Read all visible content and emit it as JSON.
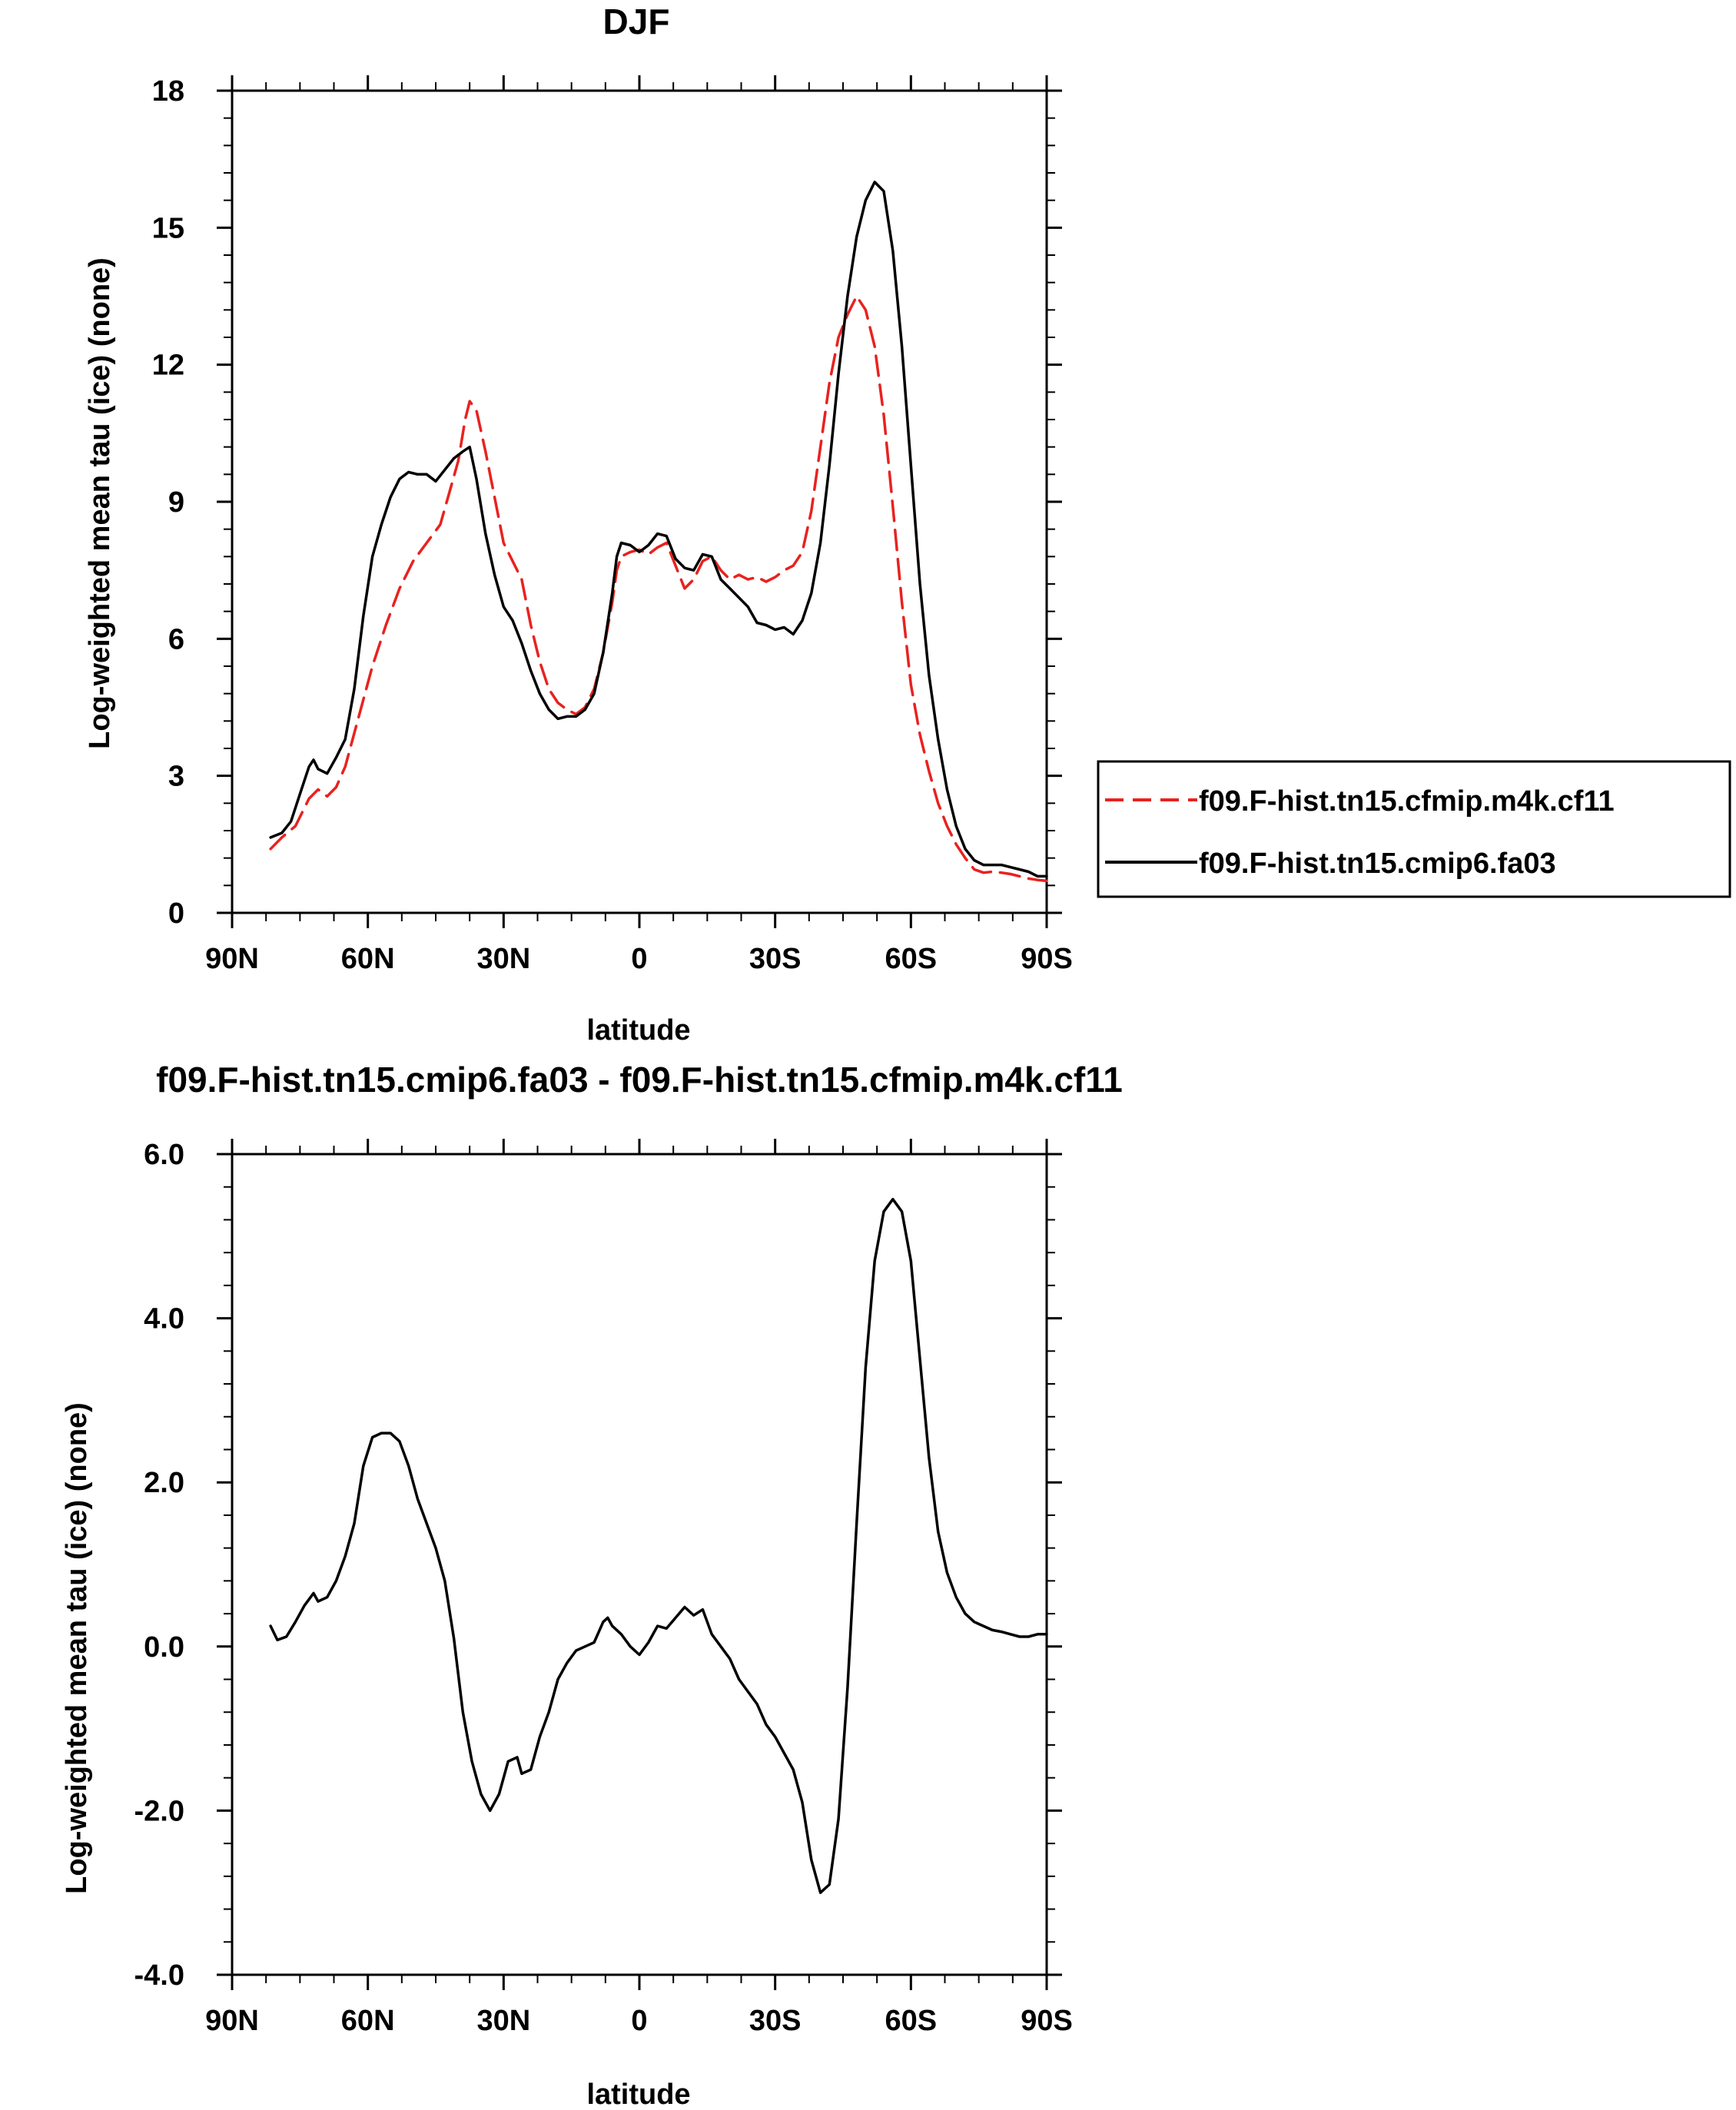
{
  "chart_data": [
    {
      "type": "line",
      "title": "DJF",
      "xlabel": "latitude",
      "ylabel": "Log-weighted mean tau (ice) (none)",
      "xlim": [
        90,
        -90
      ],
      "ylim": [
        0,
        18
      ],
      "xticks": [
        90,
        60,
        30,
        0,
        -30,
        -60,
        -90
      ],
      "xtick_labels": [
        "90N",
        "60N",
        "30N",
        "0",
        "30S",
        "60S",
        "90S"
      ],
      "yticks": [
        0,
        3,
        6,
        9,
        12,
        15,
        18
      ],
      "ytick_labels": [
        "0",
        "3",
        "6",
        "9",
        "12",
        "15",
        "18"
      ],
      "grid": false,
      "legend_position": "right",
      "series": [
        {
          "name": "f09.F-hist.tn15.cfmip.m4k.cf11",
          "color": "#e8221f",
          "dash": "dashed",
          "points": [
            [
              81.5,
              1.4
            ],
            [
              79,
              1.65
            ],
            [
              76,
              1.9
            ],
            [
              73,
              2.5
            ],
            [
              71,
              2.7
            ],
            [
              69,
              2.55
            ],
            [
              67,
              2.75
            ],
            [
              65,
              3.2
            ],
            [
              62,
              4.3
            ],
            [
              59,
              5.4
            ],
            [
              56,
              6.3
            ],
            [
              53,
              7.1
            ],
            [
              50,
              7.7
            ],
            [
              47,
              8.1
            ],
            [
              44,
              8.5
            ],
            [
              42,
              9.2
            ],
            [
              40,
              9.9
            ],
            [
              38.5,
              10.8
            ],
            [
              37.5,
              11.2
            ],
            [
              36,
              11.0
            ],
            [
              34,
              10.1
            ],
            [
              32,
              9.1
            ],
            [
              30,
              8.1
            ],
            [
              28,
              7.7
            ],
            [
              26,
              7.3
            ],
            [
              24,
              6.3
            ],
            [
              22,
              5.5
            ],
            [
              20,
              4.9
            ],
            [
              18,
              4.6
            ],
            [
              16,
              4.45
            ],
            [
              14,
              4.35
            ],
            [
              12,
              4.5
            ],
            [
              10,
              4.9
            ],
            [
              8,
              5.7
            ],
            [
              6,
              6.8
            ],
            [
              5,
              7.5
            ],
            [
              4,
              7.8
            ],
            [
              2,
              7.9
            ],
            [
              0,
              7.95
            ],
            [
              -2,
              7.85
            ],
            [
              -4,
              8.0
            ],
            [
              -6,
              8.1
            ],
            [
              -8,
              7.6
            ],
            [
              -10,
              7.1
            ],
            [
              -12,
              7.3
            ],
            [
              -14,
              7.7
            ],
            [
              -16,
              7.8
            ],
            [
              -18,
              7.5
            ],
            [
              -20,
              7.3
            ],
            [
              -22,
              7.4
            ],
            [
              -24,
              7.3
            ],
            [
              -26,
              7.35
            ],
            [
              -28,
              7.25
            ],
            [
              -30,
              7.35
            ],
            [
              -32,
              7.5
            ],
            [
              -34,
              7.6
            ],
            [
              -36,
              7.9
            ],
            [
              -38,
              8.8
            ],
            [
              -40,
              10.2
            ],
            [
              -42,
              11.6
            ],
            [
              -44,
              12.6
            ],
            [
              -46,
              13.1
            ],
            [
              -48,
              13.5
            ],
            [
              -50,
              13.2
            ],
            [
              -52,
              12.4
            ],
            [
              -54,
              10.9
            ],
            [
              -56,
              8.9
            ],
            [
              -58,
              6.8
            ],
            [
              -60,
              5.0
            ],
            [
              -62,
              3.9
            ],
            [
              -64,
              3.1
            ],
            [
              -66,
              2.4
            ],
            [
              -68,
              1.9
            ],
            [
              -70,
              1.5
            ],
            [
              -72,
              1.2
            ],
            [
              -74,
              0.95
            ],
            [
              -76,
              0.88
            ],
            [
              -78,
              0.9
            ],
            [
              -80,
              0.88
            ],
            [
              -82,
              0.85
            ],
            [
              -84,
              0.8
            ],
            [
              -86,
              0.75
            ],
            [
              -88,
              0.72
            ],
            [
              -90,
              0.7
            ]
          ]
        },
        {
          "name": "f09.F-hist.tn15.cmip6.fa03",
          "color": "#000000",
          "dash": "solid",
          "points": [
            [
              81.5,
              1.65
            ],
            [
              79,
              1.75
            ],
            [
              77,
              2.0
            ],
            [
              75,
              2.6
            ],
            [
              73,
              3.2
            ],
            [
              72,
              3.35
            ],
            [
              71,
              3.15
            ],
            [
              69,
              3.05
            ],
            [
              67,
              3.4
            ],
            [
              65,
              3.8
            ],
            [
              63,
              4.9
            ],
            [
              61,
              6.5
            ],
            [
              59,
              7.8
            ],
            [
              57,
              8.5
            ],
            [
              55,
              9.1
            ],
            [
              53,
              9.5
            ],
            [
              51,
              9.65
            ],
            [
              49,
              9.6
            ],
            [
              47,
              9.6
            ],
            [
              45,
              9.45
            ],
            [
              43,
              9.7
            ],
            [
              41,
              9.95
            ],
            [
              39,
              10.1
            ],
            [
              37.5,
              10.2
            ],
            [
              36,
              9.5
            ],
            [
              34,
              8.3
            ],
            [
              32,
              7.4
            ],
            [
              30,
              6.7
            ],
            [
              28,
              6.4
            ],
            [
              26,
              5.9
            ],
            [
              24,
              5.3
            ],
            [
              22,
              4.8
            ],
            [
              20,
              4.45
            ],
            [
              18,
              4.25
            ],
            [
              16,
              4.3
            ],
            [
              14,
              4.3
            ],
            [
              12,
              4.45
            ],
            [
              10,
              4.8
            ],
            [
              8,
              5.7
            ],
            [
              6,
              7.0
            ],
            [
              5,
              7.8
            ],
            [
              4,
              8.1
            ],
            [
              2,
              8.05
            ],
            [
              0,
              7.9
            ],
            [
              -2,
              8.05
            ],
            [
              -4,
              8.3
            ],
            [
              -6,
              8.25
            ],
            [
              -8,
              7.75
            ],
            [
              -10,
              7.55
            ],
            [
              -12,
              7.5
            ],
            [
              -14,
              7.85
            ],
            [
              -16,
              7.8
            ],
            [
              -18,
              7.3
            ],
            [
              -20,
              7.1
            ],
            [
              -22,
              6.9
            ],
            [
              -24,
              6.7
            ],
            [
              -26,
              6.35
            ],
            [
              -28,
              6.3
            ],
            [
              -30,
              6.2
            ],
            [
              -32,
              6.25
            ],
            [
              -34,
              6.1
            ],
            [
              -36,
              6.4
            ],
            [
              -38,
              7.0
            ],
            [
              -40,
              8.1
            ],
            [
              -42,
              9.8
            ],
            [
              -44,
              11.8
            ],
            [
              -46,
              13.5
            ],
            [
              -48,
              14.8
            ],
            [
              -50,
              15.6
            ],
            [
              -52,
              16.0
            ],
            [
              -54,
              15.8
            ],
            [
              -56,
              14.5
            ],
            [
              -58,
              12.4
            ],
            [
              -60,
              9.8
            ],
            [
              -62,
              7.2
            ],
            [
              -64,
              5.2
            ],
            [
              -66,
              3.8
            ],
            [
              -68,
              2.7
            ],
            [
              -70,
              1.9
            ],
            [
              -72,
              1.4
            ],
            [
              -74,
              1.15
            ],
            [
              -76,
              1.05
            ],
            [
              -78,
              1.05
            ],
            [
              -80,
              1.05
            ],
            [
              -82,
              1.0
            ],
            [
              -84,
              0.95
            ],
            [
              -86,
              0.9
            ],
            [
              -88,
              0.8
            ],
            [
              -90,
              0.8
            ]
          ]
        }
      ]
    },
    {
      "type": "line",
      "title": "f09.F-hist.tn15.cmip6.fa03 - f09.F-hist.tn15.cfmip.m4k.cf11",
      "xlabel": "latitude",
      "ylabel": "Log-weighted mean tau (ice) (none)",
      "xlim": [
        90,
        -90
      ],
      "ylim": [
        -4,
        6
      ],
      "xticks": [
        90,
        60,
        30,
        0,
        -30,
        -60,
        -90
      ],
      "xtick_labels": [
        "90N",
        "60N",
        "30N",
        "0",
        "30S",
        "60S",
        "90S"
      ],
      "yticks": [
        -4,
        -2,
        0,
        2,
        4,
        6
      ],
      "ytick_labels": [
        "-4.0",
        "-2.0",
        "0.0",
        "2.0",
        "4.0",
        "6.0"
      ],
      "grid": false,
      "series": [
        {
          "color": "#000000",
          "dash": "solid",
          "points": [
            [
              81.5,
              0.25
            ],
            [
              80,
              0.08
            ],
            [
              78,
              0.12
            ],
            [
              76,
              0.3
            ],
            [
              74,
              0.5
            ],
            [
              72,
              0.65
            ],
            [
              71,
              0.55
            ],
            [
              69,
              0.6
            ],
            [
              67,
              0.8
            ],
            [
              65,
              1.1
            ],
            [
              63,
              1.5
            ],
            [
              61,
              2.2
            ],
            [
              59,
              2.55
            ],
            [
              57,
              2.6
            ],
            [
              55,
              2.6
            ],
            [
              53,
              2.5
            ],
            [
              51,
              2.2
            ],
            [
              49,
              1.8
            ],
            [
              47,
              1.5
            ],
            [
              45,
              1.2
            ],
            [
              43,
              0.8
            ],
            [
              41,
              0.1
            ],
            [
              39,
              -0.8
            ],
            [
              37,
              -1.4
            ],
            [
              35,
              -1.8
            ],
            [
              33,
              -2.0
            ],
            [
              31,
              -1.8
            ],
            [
              29,
              -1.4
            ],
            [
              27,
              -1.35
            ],
            [
              26,
              -1.55
            ],
            [
              24,
              -1.5
            ],
            [
              22,
              -1.1
            ],
            [
              20,
              -0.8
            ],
            [
              18,
              -0.4
            ],
            [
              16,
              -0.2
            ],
            [
              14,
              -0.05
            ],
            [
              12,
              0.0
            ],
            [
              10,
              0.05
            ],
            [
              8,
              0.3
            ],
            [
              7,
              0.35
            ],
            [
              6,
              0.25
            ],
            [
              4,
              0.15
            ],
            [
              2,
              0.0
            ],
            [
              0,
              -0.1
            ],
            [
              -2,
              0.05
            ],
            [
              -4,
              0.25
            ],
            [
              -6,
              0.22
            ],
            [
              -8,
              0.35
            ],
            [
              -10,
              0.48
            ],
            [
              -12,
              0.38
            ],
            [
              -14,
              0.45
            ],
            [
              -16,
              0.15
            ],
            [
              -18,
              0.0
            ],
            [
              -20,
              -0.15
            ],
            [
              -22,
              -0.4
            ],
            [
              -24,
              -0.55
            ],
            [
              -26,
              -0.7
            ],
            [
              -28,
              -0.95
            ],
            [
              -30,
              -1.1
            ],
            [
              -32,
              -1.3
            ],
            [
              -34,
              -1.5
            ],
            [
              -36,
              -1.9
            ],
            [
              -38,
              -2.6
            ],
            [
              -40,
              -3.0
            ],
            [
              -42,
              -2.9
            ],
            [
              -44,
              -2.1
            ],
            [
              -46,
              -0.5
            ],
            [
              -48,
              1.5
            ],
            [
              -50,
              3.4
            ],
            [
              -52,
              4.7
            ],
            [
              -54,
              5.3
            ],
            [
              -56,
              5.45
            ],
            [
              -58,
              5.3
            ],
            [
              -60,
              4.7
            ],
            [
              -62,
              3.5
            ],
            [
              -64,
              2.3
            ],
            [
              -66,
              1.4
            ],
            [
              -68,
              0.9
            ],
            [
              -70,
              0.6
            ],
            [
              -72,
              0.4
            ],
            [
              -74,
              0.3
            ],
            [
              -76,
              0.25
            ],
            [
              -78,
              0.2
            ],
            [
              -80,
              0.18
            ],
            [
              -82,
              0.15
            ],
            [
              -84,
              0.12
            ],
            [
              -86,
              0.12
            ],
            [
              -88,
              0.15
            ],
            [
              -90,
              0.15
            ]
          ]
        }
      ]
    }
  ]
}
